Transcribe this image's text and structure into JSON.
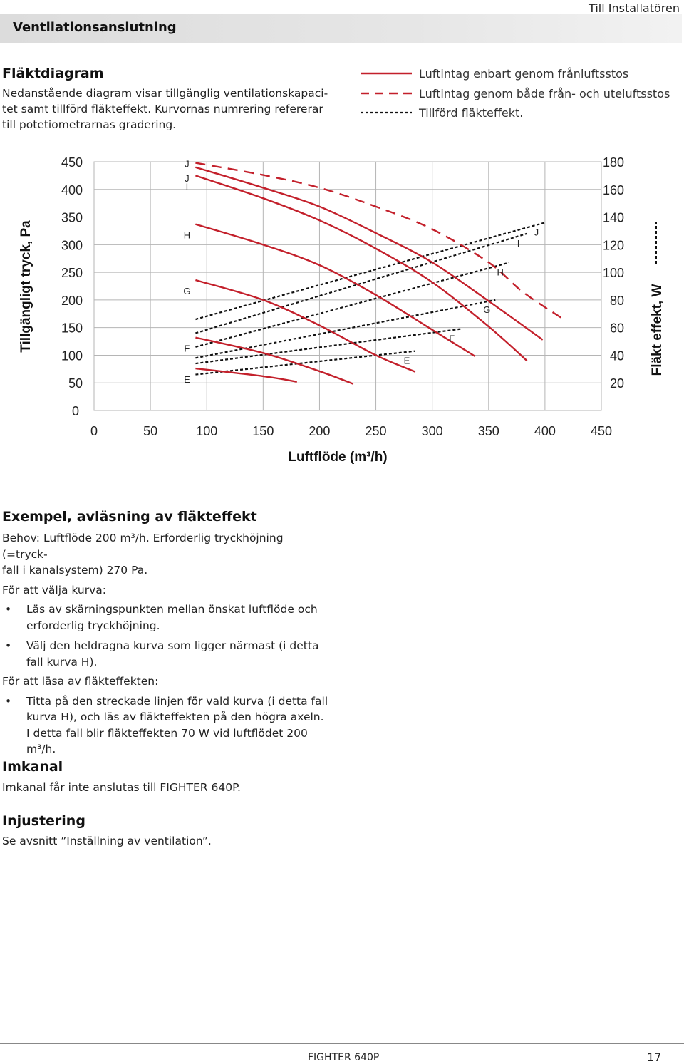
{
  "page": {
    "header_right": "Till Installatören",
    "section_title": "Ventilationsanslutning",
    "footer_product": "FIGHTER 640P",
    "footer_page": "17"
  },
  "fan_diagram": {
    "heading": "Fläktdiagram",
    "intro_lines": [
      "Nedanstående diagram visar tillgänglig ventilationskapaci-",
      "tet samt tillförd fläkteffekt. Kurvornas numrering refererar",
      "till potetiometrarnas gradering."
    ],
    "legend": [
      {
        "label": "Luftintag enbart genom frånluftsstos",
        "style": "solid",
        "color": "#c3202b"
      },
      {
        "label": "Luftintag genom både från- och uteluftsstos",
        "style": "dashed",
        "color": "#c3202b"
      },
      {
        "label": "Tillförd fläkteffekt.",
        "style": "dotted",
        "color": "#111111"
      }
    ]
  },
  "chart_data": {
    "type": "line",
    "xlabel": "Luftflöde (m³/h)",
    "ylabel_left": "Tillgängligt tryck, Pa",
    "ylabel_right": "Fläkt effekt, W",
    "xlim": [
      0,
      450
    ],
    "ylim_left": [
      0,
      450
    ],
    "ylim_right": [
      0,
      180
    ],
    "x_ticks": [
      "0",
      "50",
      "100",
      "150",
      "200",
      "250",
      "300",
      "350",
      "400",
      "450"
    ],
    "y_ticks_left": [
      "0",
      "50",
      "100",
      "150",
      "200",
      "250",
      "300",
      "350",
      "400",
      "450"
    ],
    "y_ticks_right": [
      "20",
      "40",
      "60",
      "80",
      "100",
      "120",
      "140",
      "160",
      "180"
    ],
    "grid": true,
    "pressure_curves_solid": [
      {
        "name": "J",
        "label": "J",
        "points": [
          [
            90,
            440
          ],
          [
            150,
            403
          ],
          [
            200,
            369
          ],
          [
            250,
            321
          ],
          [
            300,
            268
          ],
          [
            350,
            198
          ],
          [
            398,
            128
          ]
        ]
      },
      {
        "name": "I",
        "label": "I",
        "points": [
          [
            90,
            425
          ],
          [
            150,
            384
          ],
          [
            200,
            344
          ],
          [
            250,
            293
          ],
          [
            300,
            232
          ],
          [
            350,
            152
          ],
          [
            384,
            90
          ]
        ]
      },
      {
        "name": "H",
        "label": "H",
        "points": [
          [
            90,
            337
          ],
          [
            150,
            300
          ],
          [
            200,
            263
          ],
          [
            250,
            209
          ],
          [
            300,
            146
          ],
          [
            338,
            98
          ]
        ]
      },
      {
        "name": "G",
        "label": "G",
        "points": [
          [
            90,
            236
          ],
          [
            150,
            200
          ],
          [
            200,
            154
          ],
          [
            250,
            100
          ],
          [
            285,
            70
          ]
        ]
      },
      {
        "name": "F",
        "label": "F",
        "points": [
          [
            90,
            132
          ],
          [
            150,
            104
          ],
          [
            200,
            71
          ],
          [
            230,
            48
          ]
        ]
      },
      {
        "name": "E",
        "label": "E",
        "points": [
          [
            90,
            76
          ],
          [
            150,
            62
          ],
          [
            180,
            52
          ]
        ]
      }
    ],
    "pressure_curves_dashed": [
      {
        "name": "J",
        "label": "J",
        "points": [
          [
            90,
            448
          ],
          [
            150,
            426
          ],
          [
            200,
            403
          ],
          [
            250,
            369
          ],
          [
            300,
            328
          ],
          [
            350,
            268
          ],
          [
            380,
            215
          ],
          [
            415,
            167
          ]
        ]
      }
    ],
    "power_lines_dotted": [
      {
        "name": "J",
        "label": "J",
        "x": [
          90,
          400
        ],
        "y_watt": [
          66,
          136
        ]
      },
      {
        "name": "I",
        "label": "I",
        "x": [
          90,
          384
        ],
        "y_watt": [
          56,
          128
        ]
      },
      {
        "name": "H",
        "label": "H",
        "x": [
          90,
          368
        ],
        "y_watt": [
          46,
          107
        ]
      },
      {
        "name": "G",
        "label": "G",
        "x": [
          90,
          356
        ],
        "y_watt": [
          38,
          80
        ]
      },
      {
        "name": "F",
        "label": "F",
        "x": [
          90,
          325
        ],
        "y_watt": [
          34,
          59
        ]
      },
      {
        "name": "E",
        "label": "E",
        "x": [
          90,
          285
        ],
        "y_watt": [
          26,
          43
        ]
      }
    ]
  },
  "example": {
    "heading": "Exempel, avläsning av fläkteffekt",
    "lines1": [
      "Behov: Luftflöde 200 m³/h. Erforderlig tryckhöjning (=tryck-",
      "fall i kanalsystem) 270 Pa."
    ],
    "lead1": "För att välja kurva:",
    "bullets1": [
      [
        "Läs av skärningspunkten mellan önskat luftflöde och",
        "erforderlig tryckhöjning."
      ],
      [
        "Välj den heldragna kurva som ligger närmast (i detta",
        "fall kurva H)."
      ]
    ],
    "lead2": "För att läsa av fläkteffekten:",
    "bullets2": [
      [
        "Titta på den streckade linjen för vald kurva (i detta fall",
        "kurva H), och läs av fläkteffekten på den högra axeln.",
        "I detta fall blir fläkteffekten 70 W vid luftflödet 200",
        "m³/h."
      ]
    ]
  },
  "imkanal": {
    "heading": "Imkanal",
    "text": "Imkanal får inte anslutas till FIGHTER 640P."
  },
  "injustering": {
    "heading": "Injustering",
    "text": "Se avsnitt ”Inställning av ventilation”."
  }
}
